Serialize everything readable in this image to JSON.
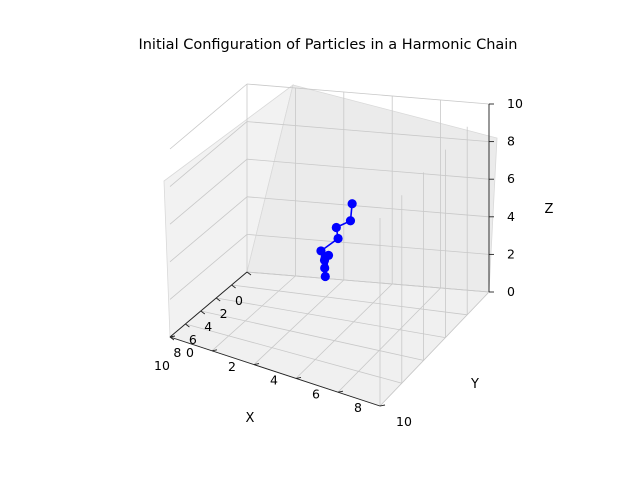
{
  "chart_data": {
    "type": "scatter",
    "projection": "3d",
    "title": "Initial Configuration of Particles in a Harmonic Chain",
    "xlabel": "X",
    "ylabel": "Y",
    "zlabel": "Z",
    "xlim": [
      0,
      10
    ],
    "ylim": [
      0,
      10
    ],
    "zlim": [
      0,
      10
    ],
    "xticks": [
      "0",
      "2",
      "4",
      "6",
      "8",
      "10"
    ],
    "yticks": [
      "0",
      "2",
      "4",
      "6",
      "8",
      "10"
    ],
    "zticks": [
      "0",
      "2",
      "4",
      "6",
      "8",
      "10"
    ],
    "grid": true,
    "color": "#0000ff",
    "connected": true,
    "points": [
      {
        "x": 3.2,
        "y": 5.6,
        "z": 5.8
      },
      {
        "x": 4.1,
        "y": 5.9,
        "z": 5.4
      },
      {
        "x": 3.9,
        "y": 5.2,
        "z": 4.8
      },
      {
        "x": 4.2,
        "y": 5.4,
        "z": 4.4
      },
      {
        "x": 5.3,
        "y": 5.1,
        "z": 4.2
      },
      {
        "x": 5.4,
        "y": 5.3,
        "z": 3.8
      },
      {
        "x": 4.6,
        "y": 5.0,
        "z": 3.5
      },
      {
        "x": 4.9,
        "y": 5.1,
        "z": 3.1
      },
      {
        "x": 4.0,
        "y": 4.9,
        "z": 3.3
      },
      {
        "x": 4.1,
        "y": 4.8,
        "z": 2.2
      }
    ]
  }
}
